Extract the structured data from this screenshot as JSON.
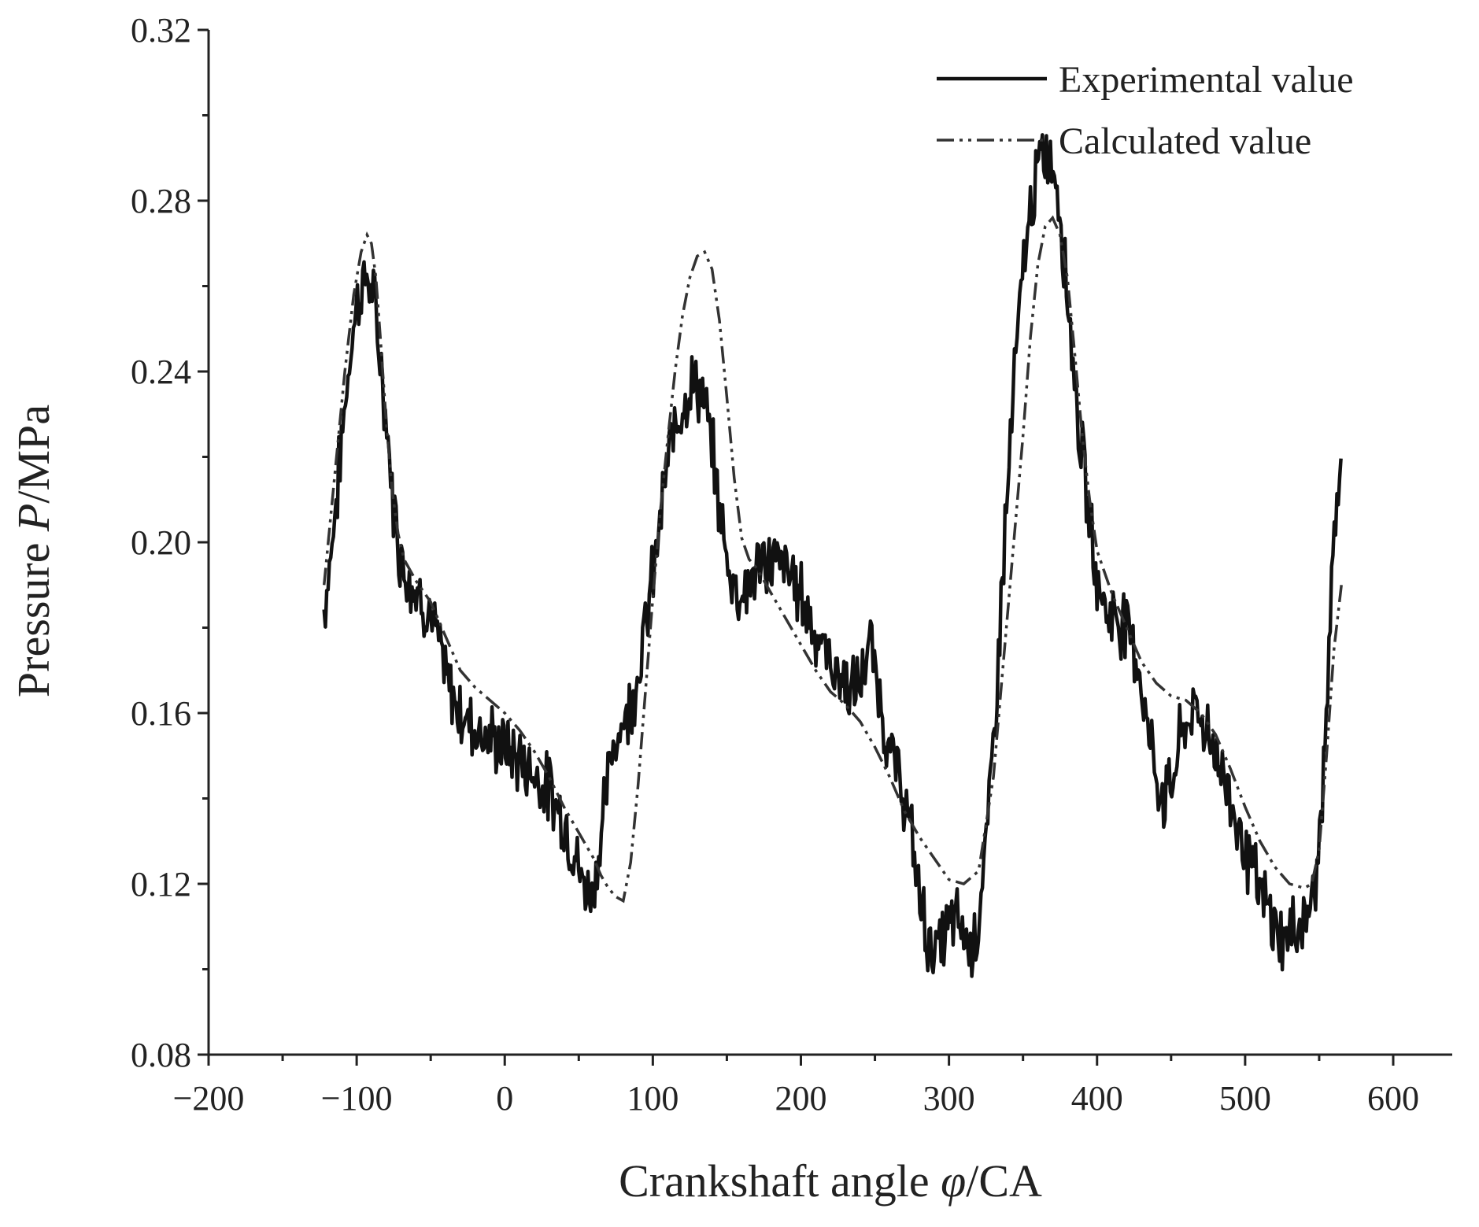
{
  "chart_data": {
    "type": "line",
    "xlabel_parts": [
      "Crankshaft angle ",
      "φ",
      "/CA"
    ],
    "ylabel_parts": [
      "Pressure ",
      "P",
      "/MPa"
    ],
    "xlim": [
      -200,
      600
    ],
    "ylim": [
      0.08,
      0.32
    ],
    "x_ticks": [
      "−200",
      "−100",
      "0",
      "100",
      "200",
      "300",
      "400",
      "500",
      "600"
    ],
    "x_tick_values": [
      -200,
      -100,
      0,
      100,
      200,
      300,
      400,
      500,
      600
    ],
    "y_ticks": [
      "0.08",
      "0.12",
      "0.16",
      "0.20",
      "0.24",
      "0.28",
      "0.32"
    ],
    "y_tick_values": [
      0.08,
      0.12,
      0.16,
      0.2,
      0.24,
      0.28,
      0.32
    ],
    "legend_position": "top-right",
    "grid": false,
    "series": [
      {
        "name": "Experimental value",
        "style": "solid",
        "color": "#111111",
        "noisy": true,
        "x": [
          -122,
          -115,
          -108,
          -102,
          -97,
          -92,
          -88,
          -84,
          -80,
          -76,
          -72,
          -68,
          -62,
          -56,
          -50,
          -44,
          -38,
          -30,
          -20,
          -10,
          0,
          10,
          20,
          30,
          40,
          48,
          52,
          56,
          60,
          64,
          68,
          72,
          76,
          80,
          85,
          90,
          95,
          100,
          105,
          110,
          115,
          120,
          125,
          130,
          135,
          140,
          145,
          150,
          155,
          160,
          165,
          170,
          180,
          190,
          200,
          210,
          220,
          228,
          235,
          240,
          245,
          248,
          252,
          256,
          260,
          265,
          270,
          275,
          280,
          285,
          290,
          295,
          300,
          305,
          310,
          315,
          320,
          325,
          330,
          335,
          340,
          345,
          350,
          355,
          360,
          365,
          368,
          372,
          376,
          380,
          385,
          390,
          395,
          400,
          405,
          410,
          415,
          420,
          425,
          430,
          435,
          440,
          445,
          450,
          455,
          460,
          465,
          470,
          475,
          480,
          490,
          500,
          510,
          520,
          525,
          530,
          535,
          540,
          545,
          550,
          555,
          560,
          565
        ],
        "y": [
          0.184,
          0.205,
          0.232,
          0.252,
          0.26,
          0.262,
          0.255,
          0.243,
          0.228,
          0.212,
          0.2,
          0.194,
          0.19,
          0.187,
          0.183,
          0.175,
          0.166,
          0.16,
          0.157,
          0.154,
          0.152,
          0.149,
          0.146,
          0.142,
          0.135,
          0.126,
          0.121,
          0.118,
          0.12,
          0.128,
          0.14,
          0.15,
          0.156,
          0.158,
          0.162,
          0.17,
          0.18,
          0.192,
          0.205,
          0.218,
          0.228,
          0.233,
          0.236,
          0.237,
          0.232,
          0.222,
          0.208,
          0.196,
          0.19,
          0.188,
          0.19,
          0.194,
          0.196,
          0.194,
          0.188,
          0.179,
          0.172,
          0.168,
          0.165,
          0.167,
          0.174,
          0.175,
          0.166,
          0.158,
          0.151,
          0.146,
          0.14,
          0.13,
          0.118,
          0.108,
          0.104,
          0.106,
          0.11,
          0.112,
          0.108,
          0.105,
          0.112,
          0.128,
          0.152,
          0.185,
          0.215,
          0.243,
          0.263,
          0.278,
          0.287,
          0.291,
          0.29,
          0.286,
          0.275,
          0.258,
          0.238,
          0.22,
          0.204,
          0.192,
          0.185,
          0.183,
          0.182,
          0.181,
          0.176,
          0.167,
          0.155,
          0.145,
          0.14,
          0.143,
          0.152,
          0.158,
          0.16,
          0.159,
          0.156,
          0.151,
          0.14,
          0.128,
          0.118,
          0.11,
          0.107,
          0.108,
          0.11,
          0.112,
          0.115,
          0.128,
          0.16,
          0.2,
          0.22
        ]
      },
      {
        "name": "Calculated value",
        "style": "dash-dot-dot",
        "color": "#333333",
        "noisy": false,
        "x": [
          -122,
          -115,
          -108,
          -102,
          -97,
          -93,
          -90,
          -87,
          -84,
          -80,
          -76,
          -72,
          -68,
          -60,
          -50,
          -40,
          -30,
          -20,
          -10,
          0,
          10,
          20,
          30,
          40,
          50,
          60,
          65,
          70,
          75,
          80,
          85,
          90,
          95,
          100,
          105,
          110,
          115,
          120,
          125,
          130,
          135,
          140,
          145,
          150,
          155,
          160,
          165,
          170,
          180,
          190,
          200,
          210,
          220,
          230,
          240,
          250,
          260,
          270,
          280,
          290,
          300,
          310,
          320,
          330,
          340,
          350,
          355,
          360,
          365,
          370,
          375,
          380,
          385,
          390,
          395,
          400,
          410,
          420,
          430,
          440,
          450,
          460,
          470,
          480,
          490,
          500,
          510,
          520,
          530,
          540,
          545,
          550,
          555,
          560,
          565
        ],
        "y": [
          0.19,
          0.215,
          0.24,
          0.258,
          0.268,
          0.272,
          0.27,
          0.262,
          0.248,
          0.228,
          0.212,
          0.202,
          0.196,
          0.191,
          0.186,
          0.178,
          0.17,
          0.166,
          0.163,
          0.16,
          0.156,
          0.151,
          0.145,
          0.138,
          0.132,
          0.126,
          0.122,
          0.119,
          0.117,
          0.116,
          0.125,
          0.143,
          0.165,
          0.187,
          0.207,
          0.224,
          0.24,
          0.253,
          0.262,
          0.267,
          0.268,
          0.264,
          0.252,
          0.234,
          0.215,
          0.201,
          0.196,
          0.194,
          0.188,
          0.182,
          0.176,
          0.17,
          0.165,
          0.162,
          0.158,
          0.152,
          0.145,
          0.137,
          0.131,
          0.126,
          0.121,
          0.12,
          0.123,
          0.145,
          0.185,
          0.225,
          0.248,
          0.265,
          0.274,
          0.276,
          0.272,
          0.262,
          0.244,
          0.225,
          0.21,
          0.198,
          0.188,
          0.18,
          0.172,
          0.167,
          0.164,
          0.163,
          0.16,
          0.155,
          0.147,
          0.138,
          0.13,
          0.124,
          0.12,
          0.119,
          0.12,
          0.128,
          0.15,
          0.175,
          0.19
        ]
      }
    ]
  }
}
